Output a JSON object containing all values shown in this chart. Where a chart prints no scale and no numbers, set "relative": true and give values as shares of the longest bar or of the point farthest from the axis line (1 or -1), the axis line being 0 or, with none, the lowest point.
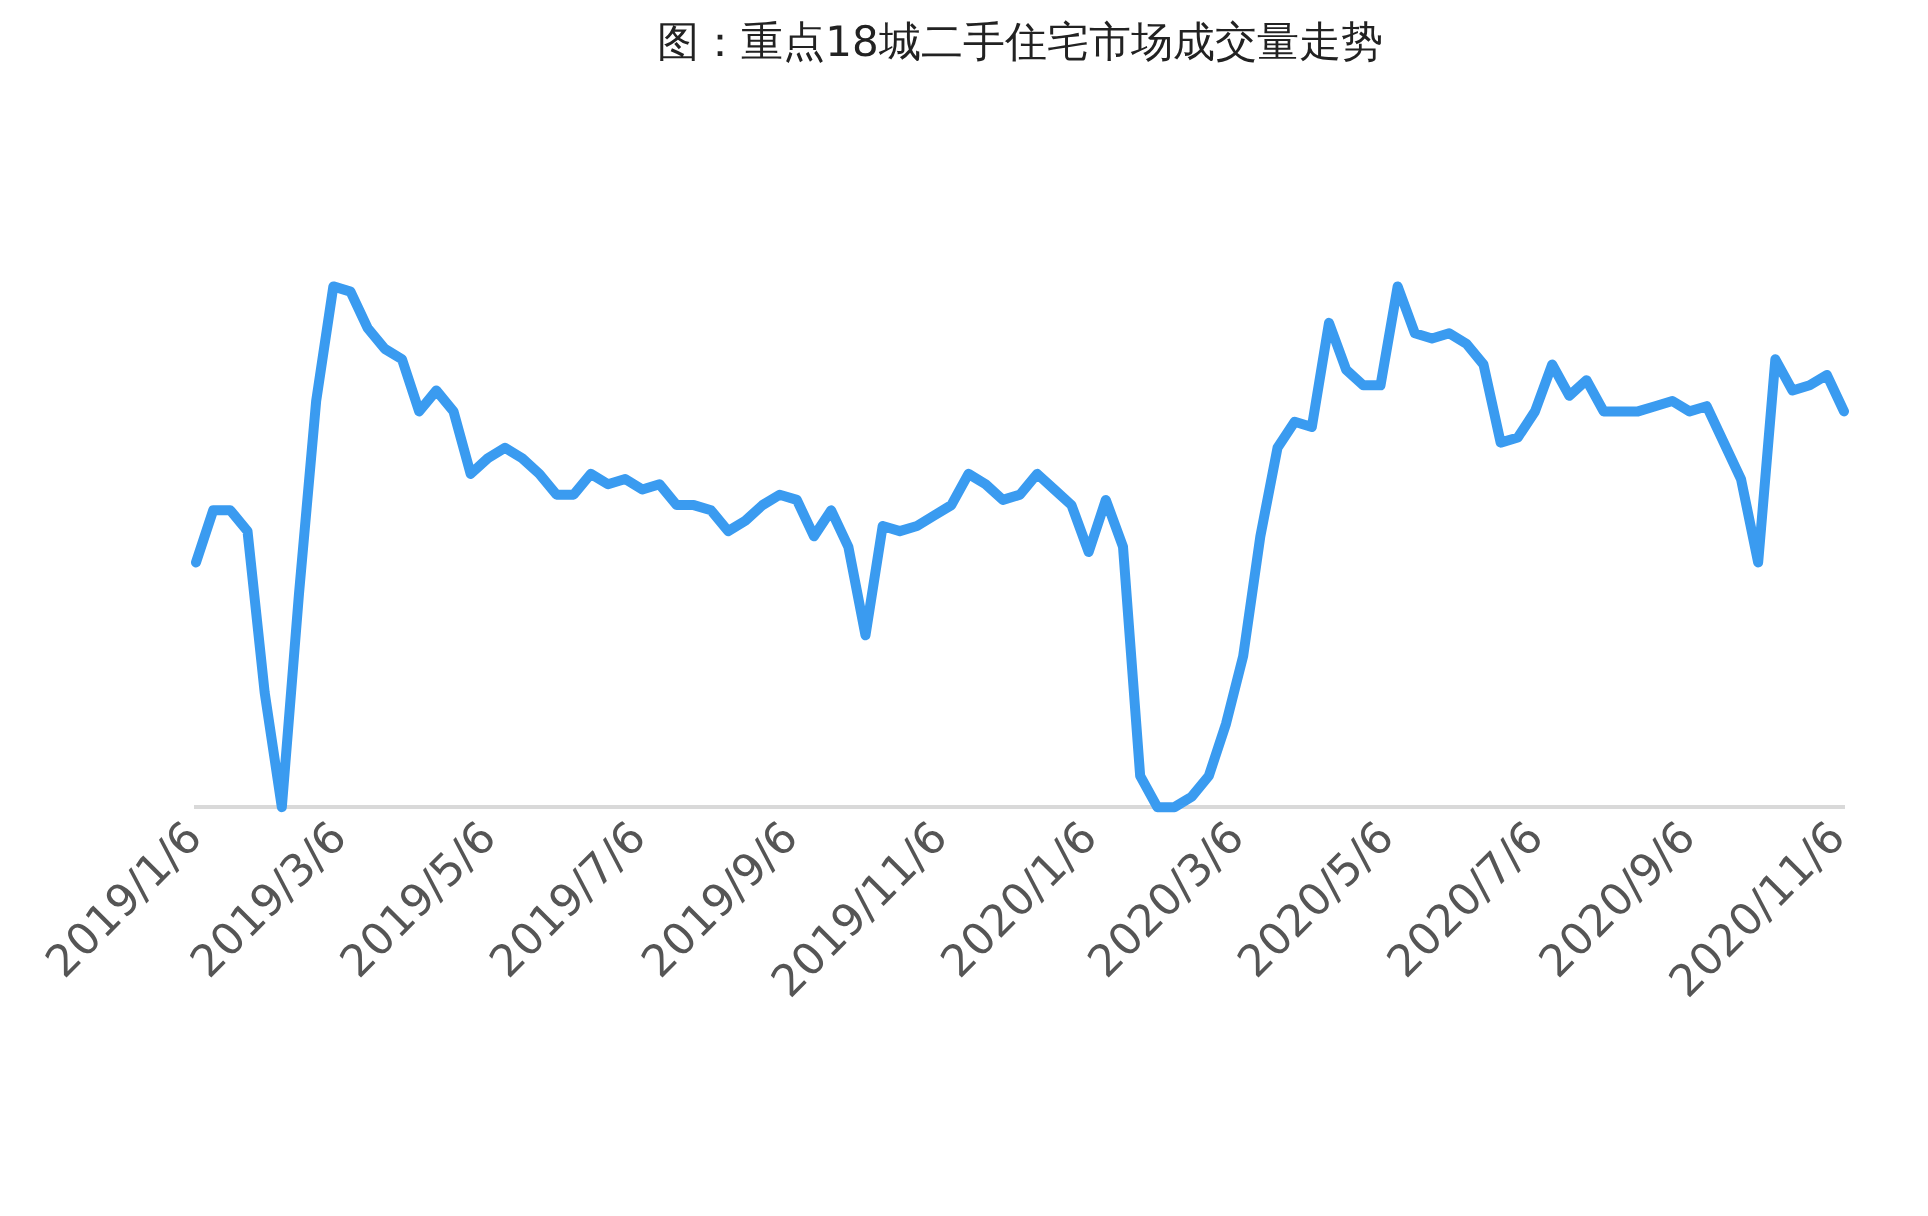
{
  "chart_data": {
    "type": "line",
    "title": "图：重点18城二手住宅市场成交量走势",
    "relative": true,
    "x": [
      "2019-01-06",
      "2019-01-13",
      "2019-01-20",
      "2019-01-27",
      "2019-02-03",
      "2019-02-10",
      "2019-02-17",
      "2019-02-24",
      "2019-03-03",
      "2019-03-10",
      "2019-03-17",
      "2019-03-24",
      "2019-03-31",
      "2019-04-07",
      "2019-04-14",
      "2019-04-21",
      "2019-04-28",
      "2019-05-05",
      "2019-05-12",
      "2019-05-19",
      "2019-05-26",
      "2019-06-02",
      "2019-06-09",
      "2019-06-16",
      "2019-06-23",
      "2019-06-30",
      "2019-07-07",
      "2019-07-14",
      "2019-07-21",
      "2019-07-28",
      "2019-08-04",
      "2019-08-11",
      "2019-08-18",
      "2019-08-25",
      "2019-09-01",
      "2019-09-08",
      "2019-09-15",
      "2019-09-22",
      "2019-09-29",
      "2019-10-06",
      "2019-10-13",
      "2019-10-20",
      "2019-10-27",
      "2019-11-03",
      "2019-11-10",
      "2019-11-17",
      "2019-11-24",
      "2019-12-01",
      "2019-12-08",
      "2019-12-15",
      "2019-12-22",
      "2019-12-29",
      "2020-01-05",
      "2020-01-12",
      "2020-01-19",
      "2020-01-26",
      "2020-02-02",
      "2020-02-09",
      "2020-02-16",
      "2020-02-23",
      "2020-03-01",
      "2020-03-08",
      "2020-03-15",
      "2020-03-22",
      "2020-03-29",
      "2020-04-05",
      "2020-04-12",
      "2020-04-19",
      "2020-04-26",
      "2020-05-03",
      "2020-05-10",
      "2020-05-17",
      "2020-05-24",
      "2020-05-31",
      "2020-06-07",
      "2020-06-14",
      "2020-06-21",
      "2020-06-28",
      "2020-07-05",
      "2020-07-12",
      "2020-07-19",
      "2020-07-26",
      "2020-08-02",
      "2020-08-09",
      "2020-08-16",
      "2020-08-23",
      "2020-08-30",
      "2020-09-06",
      "2020-09-13",
      "2020-09-20",
      "2020-09-27",
      "2020-10-04",
      "2020-10-11",
      "2020-10-18",
      "2020-10-25",
      "2020-11-01",
      "2020-11-08"
    ],
    "series": [
      {
        "color": "#3a9bf0",
        "values": [
          0.47,
          0.57,
          0.57,
          0.53,
          0.22,
          0.0,
          0.41,
          0.78,
          1.0,
          0.99,
          0.92,
          0.88,
          0.86,
          0.76,
          0.8,
          0.76,
          0.64,
          0.67,
          0.69,
          0.67,
          0.64,
          0.6,
          0.6,
          0.64,
          0.62,
          0.63,
          0.61,
          0.62,
          0.58,
          0.58,
          0.57,
          0.53,
          0.55,
          0.58,
          0.6,
          0.59,
          0.52,
          0.57,
          0.5,
          0.33,
          0.54,
          0.53,
          0.54,
          0.56,
          0.58,
          0.64,
          0.62,
          0.59,
          0.6,
          0.64,
          0.61,
          0.58,
          0.49,
          0.59,
          0.5,
          0.06,
          0.0,
          0.0,
          0.02,
          0.06,
          0.16,
          0.29,
          0.52,
          0.69,
          0.74,
          0.73,
          0.93,
          0.84,
          0.81,
          0.81,
          1.0,
          0.91,
          0.9,
          0.91,
          0.89,
          0.85,
          0.7,
          0.71,
          0.76,
          0.85,
          0.79,
          0.82,
          0.76,
          0.76,
          0.76,
          0.77,
          0.78,
          0.76,
          0.77,
          0.7,
          0.63,
          0.47,
          0.86,
          0.8,
          0.81,
          0.83,
          0.76
        ]
      }
    ],
    "xlim": [
      "2019-01-06",
      "2020-11-08"
    ],
    "xticks": [
      {
        "value": "2019-01-06",
        "label": "2019/1/6"
      },
      {
        "value": "2019-03-06",
        "label": "2019/3/6"
      },
      {
        "value": "2019-05-06",
        "label": "2019/5/6"
      },
      {
        "value": "2019-07-06",
        "label": "2019/7/6"
      },
      {
        "value": "2019-09-06",
        "label": "2019/9/6"
      },
      {
        "value": "2019-11-06",
        "label": "2019/11/6"
      },
      {
        "value": "2020-01-06",
        "label": "2020/1/6"
      },
      {
        "value": "2020-03-06",
        "label": "2020/3/6"
      },
      {
        "value": "2020-05-06",
        "label": "2020/5/6"
      },
      {
        "value": "2020-07-06",
        "label": "2020/7/6"
      },
      {
        "value": "2020-09-06",
        "label": "2020/9/6"
      },
      {
        "value": "2020-11-06",
        "label": "2020/11/6"
      }
    ],
    "grid": false,
    "legend": false,
    "marker": "none",
    "line_style": "solid"
  }
}
